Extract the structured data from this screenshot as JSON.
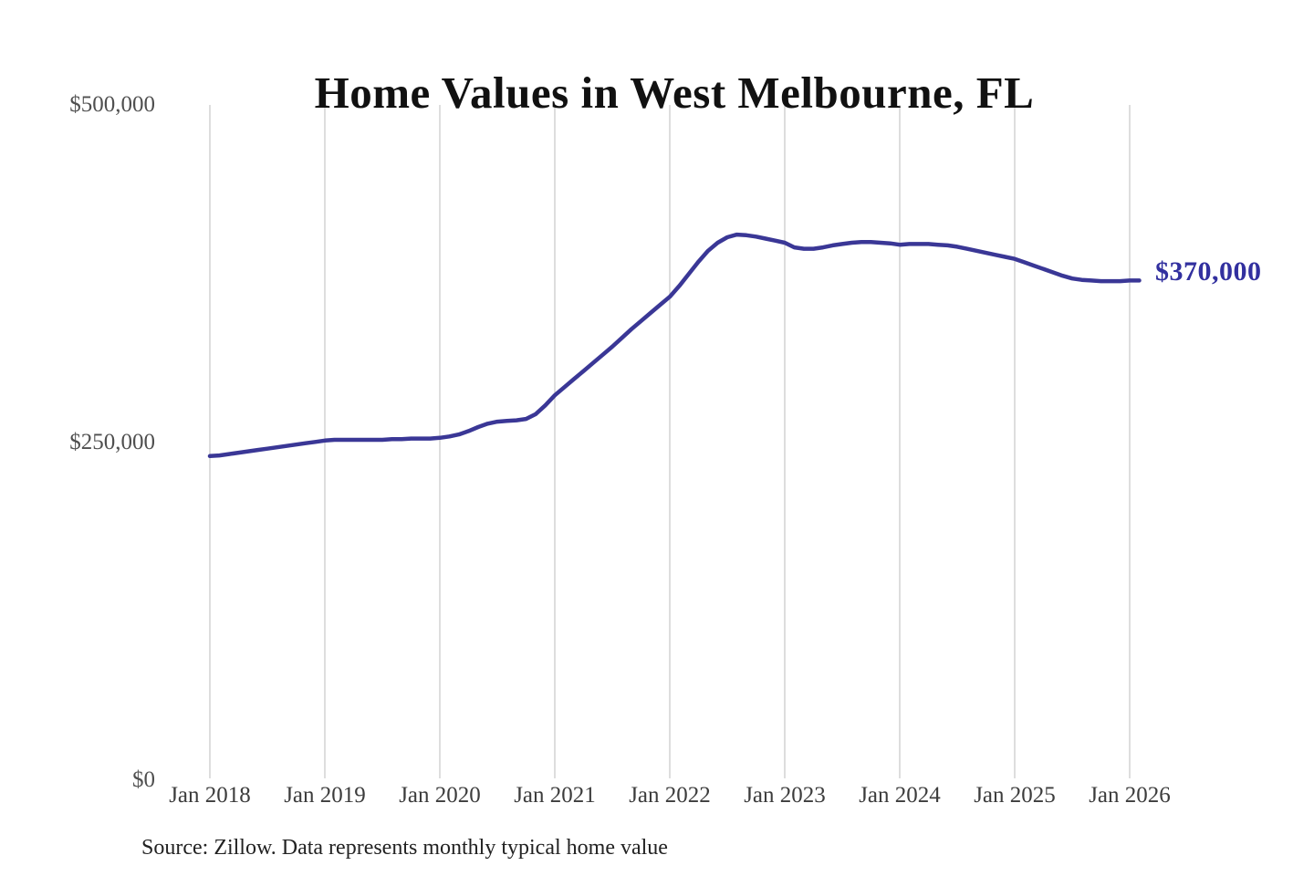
{
  "chart": {
    "title": "Home Values in West Melbourne, FL",
    "end_label": "$370,000",
    "source_note": "Source: Zillow. Data represents monthly typical home value",
    "colors": {
      "line": "#3a3796",
      "end_label": "#32309f",
      "gridline": "#cbcbcb",
      "title": "#111111",
      "axis_label": "#3c3c3c"
    }
  },
  "chart_data": {
    "type": "line",
    "title": "Home Values in West Melbourne, FL",
    "x_tick_labels": [
      "Jan 2018",
      "Jan 2019",
      "Jan 2020",
      "Jan 2021",
      "Jan 2022",
      "Jan 2023",
      "Jan 2024",
      "Jan 2025",
      "Jan 2026"
    ],
    "y_ticks": [
      {
        "value": 0,
        "label": "$0"
      },
      {
        "value": 250000,
        "label": "$250,000"
      },
      {
        "value": 500000,
        "label": "$500,000"
      }
    ],
    "ylim": [
      0,
      500000
    ],
    "grid": "vertical-only",
    "legend": "none",
    "x_start": "2018-01",
    "x_step_months": 1,
    "series": [
      {
        "name": "Monthly typical home value",
        "unit": "USD",
        "values": [
          240000,
          240500,
          241500,
          242500,
          243500,
          244500,
          245500,
          246500,
          247500,
          248500,
          249500,
          250500,
          251500,
          252000,
          252000,
          252000,
          252000,
          252000,
          252000,
          252500,
          252500,
          253000,
          253000,
          253000,
          253500,
          254500,
          256000,
          258500,
          261500,
          264000,
          265500,
          266000,
          266500,
          267500,
          271000,
          277500,
          285000,
          291000,
          297000,
          303000,
          309000,
          315000,
          321000,
          327500,
          334000,
          340000,
          346000,
          352000,
          358000,
          366000,
          375000,
          384000,
          392000,
          398000,
          402000,
          404000,
          403500,
          402500,
          401000,
          399500,
          398000,
          394500,
          393500,
          393500,
          394500,
          396000,
          397000,
          398000,
          398500,
          398500,
          398000,
          397500,
          396500,
          397000,
          397000,
          397000,
          396500,
          396000,
          395000,
          393500,
          392000,
          390500,
          389000,
          387500,
          386000,
          383500,
          381000,
          378500,
          376000,
          373500,
          371500,
          370500,
          370000,
          369500,
          369500,
          369500,
          370000,
          370000
        ]
      }
    ],
    "annotation": {
      "text": "$370,000",
      "value": 370000,
      "position": "line-end"
    },
    "source": "Source: Zillow. Data represents monthly typical home value"
  }
}
